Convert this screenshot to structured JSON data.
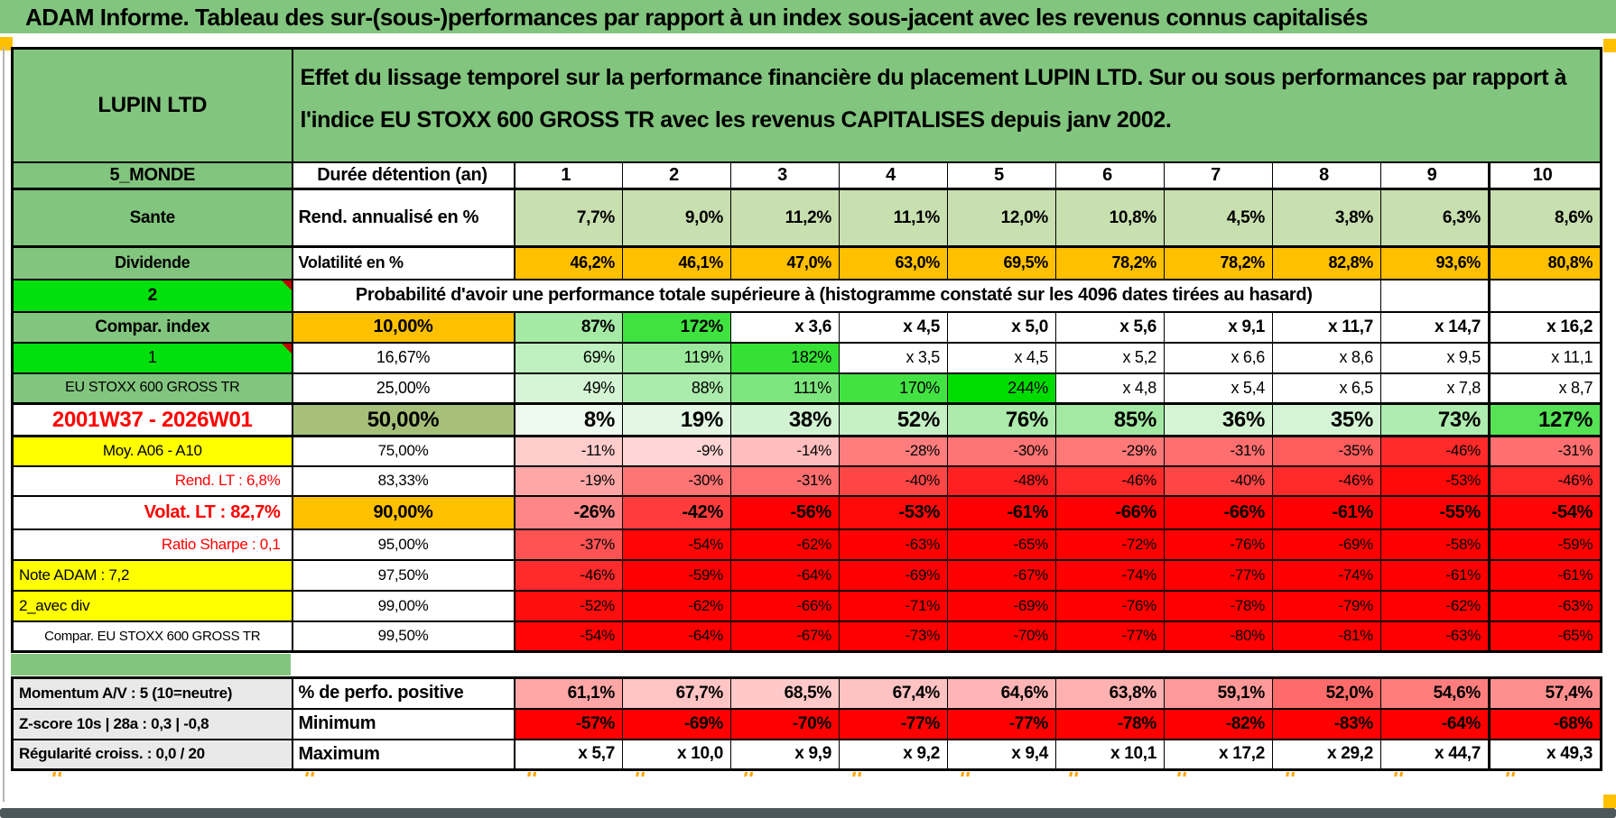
{
  "palette": {
    "green": "#82C57E",
    "green_bright": "#00E00C",
    "green_cell": "#C8DFB0",
    "olive": "#A6C07A",
    "orange": "#FFC000",
    "yellow": "#FFFF00",
    "gray_label": "#E9E9E9",
    "red_text": "#FF0000",
    "red_full": "#FF0000",
    "bar": "#4D585B",
    "tick": "#FFA500"
  },
  "title": "ADAM Informe. Tableau des sur-(sous-)performances par rapport à un index sous-jacent avec les revenus connus capitalisés",
  "header": {
    "instrument": "LUPIN LTD",
    "description": "Effet du lissage temporel sur la performance financière du placement LUPIN LTD. Sur ou sous performances par rapport à l'indice EU STOXX 600 GROSS TR avec les revenus CAPITALISES depuis janv 2002."
  },
  "columns": [
    "1",
    "2",
    "3",
    "4",
    "5",
    "6",
    "7",
    "8",
    "9",
    "10"
  ],
  "rows": {
    "duration": {
      "label": "5_MONDE",
      "header": "Durée détention (an)"
    },
    "rend": {
      "label": "Sante",
      "header": "Rend. annualisé en %",
      "values": [
        "7,7%",
        "9,0%",
        "11,2%",
        "11,1%",
        "12,0%",
        "10,8%",
        "4,5%",
        "3,8%",
        "6,3%",
        "8,6%"
      ],
      "bgs": [
        "#C8DFB0",
        "#C8DFB0",
        "#C8DFB0",
        "#C8DFB0",
        "#C8DFB0",
        "#C8DFB0",
        "#C8DFB0",
        "#C8DFB0",
        "#C8DFB0",
        "#C8DFB0"
      ]
    },
    "vol": {
      "label": "Dividende",
      "header": "Volatilité en %",
      "values": [
        "46,2%",
        "46,1%",
        "47,0%",
        "63,0%",
        "69,5%",
        "78,2%",
        "78,2%",
        "82,8%",
        "93,6%",
        "80,8%"
      ],
      "bgs": [
        "#FFC000",
        "#FFC000",
        "#FFC000",
        "#FFC000",
        "#FFC000",
        "#FFC000",
        "#FFC000",
        "#FFC000",
        "#FFC000",
        "#FFC000"
      ]
    },
    "prob": {
      "label": "2",
      "text": "Probabilité d'avoir une performance totale supérieure à (histogramme constaté sur les 4096 dates tirées au hasard)"
    },
    "p10": {
      "label": "Compar. index",
      "pct": "10,00%",
      "values": [
        "87%",
        "172%",
        "x 3,6",
        "x 4,5",
        "x 5,0",
        "x 5,6",
        "x 9,1",
        "x 11,7",
        "x 14,7",
        "x 16,2"
      ],
      "bgs": [
        "#A4EAA4",
        "#3FE33F",
        "#FFFFFF",
        "#FFFFFF",
        "#FFFFFF",
        "#FFFFFF",
        "#FFFFFF",
        "#FFFFFF",
        "#FFFFFF",
        "#FFFFFF"
      ]
    },
    "p16": {
      "label": "1",
      "pct": "16,67%",
      "values": [
        "69%",
        "119%",
        "182%",
        "x 3,5",
        "x 4,5",
        "x 5,2",
        "x 6,6",
        "x 8,6",
        "x 9,5",
        "x 11,1"
      ],
      "bgs": [
        "#BFF0BF",
        "#9CE89C",
        "#35E135",
        "#FFFFFF",
        "#FFFFFF",
        "#FFFFFF",
        "#FFFFFF",
        "#FFFFFF",
        "#FFFFFF",
        "#FFFFFF"
      ]
    },
    "p25": {
      "label": "EU STOXX 600 GROSS TR",
      "pct": "25,00%",
      "values": [
        "49%",
        "88%",
        "111%",
        "170%",
        "244%",
        "x 4,8",
        "x 5,4",
        "x 6,5",
        "x 7,8",
        "x 8,7"
      ],
      "bgs": [
        "#D5F4D5",
        "#ABEBAB",
        "#7DE57D",
        "#42E242",
        "#00DC00",
        "#FFFFFF",
        "#FFFFFF",
        "#FFFFFF",
        "#FFFFFF",
        "#FFFFFF"
      ]
    },
    "p50": {
      "label": "2001W37 - 2026W01",
      "pct": "50,00%",
      "values": [
        "8%",
        "19%",
        "38%",
        "52%",
        "76%",
        "85%",
        "36%",
        "35%",
        "73%",
        "127%"
      ],
      "bgs": [
        "#EFFAEF",
        "#E3F7E3",
        "#D2F3D2",
        "#C6F0C6",
        "#ACEBAC",
        "#A3E9A3",
        "#D4F4D4",
        "#D5F4D5",
        "#AFECAF",
        "#55E355"
      ]
    },
    "p75": {
      "label": "Moy. A06 - A10",
      "pct": "75,00%",
      "values": [
        "-11%",
        "-9%",
        "-14%",
        "-28%",
        "-30%",
        "-29%",
        "-31%",
        "-35%",
        "-46%",
        "-31%"
      ],
      "bgs": [
        "#FFCCCC",
        "#FFD5D5",
        "#FFBEBE",
        "#FF7D7D",
        "#FF7474",
        "#FF7979",
        "#FF6F6F",
        "#FF5D5D",
        "#FF2A2A",
        "#FF6F6F"
      ]
    },
    "p83": {
      "label": "Rend. LT :    6,8%",
      "pct": "83,33%",
      "values": [
        "-19%",
        "-30%",
        "-31%",
        "-40%",
        "-48%",
        "-46%",
        "-40%",
        "-46%",
        "-53%",
        "-46%"
      ],
      "bgs": [
        "#FFA7A7",
        "#FF7474",
        "#FF6F6F",
        "#FF4646",
        "#FF2121",
        "#FF2A2A",
        "#FF4646",
        "#FF2A2A",
        "#FF0909",
        "#FF2A2A"
      ]
    },
    "p90": {
      "label": "Volat. LT :    82,7%",
      "pct": "90,00%",
      "values": [
        "-26%",
        "-42%",
        "-56%",
        "-53%",
        "-61%",
        "-66%",
        "-66%",
        "-61%",
        "-55%",
        "-54%"
      ],
      "bgs": [
        "#FF8686",
        "#FF3C3C",
        "#FF0000",
        "#FF0909",
        "#FF0000",
        "#FF0000",
        "#FF0000",
        "#FF0000",
        "#FF0000",
        "#FF0505"
      ]
    },
    "p95": {
      "label": "Ratio Sharpe :    0,1",
      "pct": "95,00%",
      "values": [
        "-37%",
        "-54%",
        "-62%",
        "-63%",
        "-65%",
        "-72%",
        "-76%",
        "-69%",
        "-58%",
        "-59%"
      ],
      "bgs": [
        "#FF5353",
        "#FF0505",
        "#FF0000",
        "#FF0000",
        "#FF0000",
        "#FF0000",
        "#FF0000",
        "#FF0000",
        "#FF0000",
        "#FF0000"
      ]
    },
    "p975": {
      "label": "Note ADAM : 7,2",
      "pct": "97,50%",
      "values": [
        "-46%",
        "-59%",
        "-64%",
        "-69%",
        "-67%",
        "-74%",
        "-77%",
        "-74%",
        "-61%",
        "-61%"
      ],
      "bgs": [
        "#FF2A2A",
        "#FF0000",
        "#FF0000",
        "#FF0000",
        "#FF0000",
        "#FF0000",
        "#FF0000",
        "#FF0000",
        "#FF0000",
        "#FF0000"
      ]
    },
    "p99": {
      "label": "2_avec div",
      "pct": "99,00%",
      "values": [
        "-52%",
        "-62%",
        "-66%",
        "-71%",
        "-69%",
        "-76%",
        "-78%",
        "-79%",
        "-62%",
        "-63%"
      ],
      "bgs": [
        "#FF0E0E",
        "#FF0000",
        "#FF0000",
        "#FF0000",
        "#FF0000",
        "#FF0000",
        "#FF0000",
        "#FF0000",
        "#FF0000",
        "#FF0000"
      ]
    },
    "p995": {
      "label": "Compar. EU STOXX 600 GROSS TR",
      "pct": "99,50%",
      "values": [
        "-54%",
        "-64%",
        "-67%",
        "-73%",
        "-70%",
        "-77%",
        "-80%",
        "-81%",
        "-63%",
        "-65%"
      ],
      "bgs": [
        "#FF0505",
        "#FF0000",
        "#FF0000",
        "#FF0000",
        "#FF0000",
        "#FF0000",
        "#FF0000",
        "#FF0000",
        "#FF0000",
        "#FF0000"
      ]
    },
    "perf": {
      "label": "Momentum A/V : 5 (10=neutre)",
      "header": "% de perfo. positive",
      "values": [
        "61,1%",
        "67,7%",
        "68,5%",
        "67,4%",
        "64,6%",
        "63,8%",
        "59,1%",
        "52,0%",
        "54,6%",
        "57,4%"
      ],
      "bgs": [
        "#FFA6A6",
        "#FFC4C4",
        "#FFC9C9",
        "#FFC2C2",
        "#FFB5B5",
        "#FFB0B0",
        "#FF9999",
        "#FF6B6B",
        "#FF7D7D",
        "#FF8F8F"
      ]
    },
    "min": {
      "label": "Z-score 10s | 28a : 0,3 | -0,8",
      "header": "Minimum",
      "values": [
        "-57%",
        "-69%",
        "-70%",
        "-77%",
        "-77%",
        "-78%",
        "-82%",
        "-83%",
        "-64%",
        "-68%"
      ],
      "bgs": [
        "#FF0000",
        "#FF0000",
        "#FF0000",
        "#FF0000",
        "#FF0000",
        "#FF0000",
        "#FF0000",
        "#FF0000",
        "#FF0000",
        "#FF0000"
      ]
    },
    "max": {
      "label": "Régularité croiss. : 0,0 / 20",
      "header": "Maximum",
      "values": [
        "x 5,7",
        "x 10,0",
        "x 9,9",
        "x 9,2",
        "x 9,4",
        "x 10,1",
        "x 17,2",
        "x 29,2",
        "x 44,7",
        "x 49,3"
      ]
    }
  }
}
